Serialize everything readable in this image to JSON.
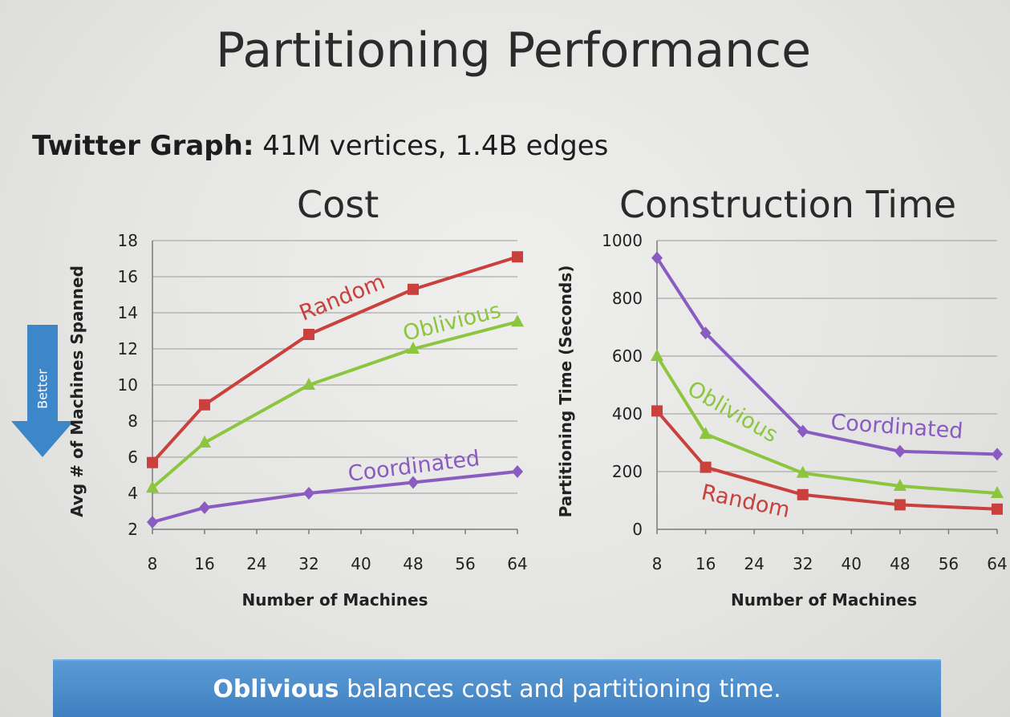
{
  "slide": {
    "title": "Partitioning Performance",
    "subtitle_bold": "Twitter Graph:",
    "subtitle_rest": " 41M vertices, 1.4B edges",
    "better_label": "Better",
    "banner_bold": "Oblivious",
    "banner_rest": " balances cost and partitioning time."
  },
  "colors": {
    "random": "#c9403c",
    "oblivious": "#8cc63f",
    "coordinated": "#8a5cc2",
    "arrow": "#3d86c8",
    "banner": "#4a8acb"
  },
  "chart_data": [
    {
      "type": "line",
      "title": "Cost",
      "xlabel": "Number of Machines",
      "ylabel": "Avg # of Machines Spanned",
      "xlim": [
        8,
        64
      ],
      "ylim": [
        2,
        18
      ],
      "xticks": [
        8,
        16,
        24,
        32,
        40,
        48,
        56,
        64
      ],
      "yticks": [
        2,
        4,
        6,
        8,
        10,
        12,
        14,
        16,
        18
      ],
      "grid": true,
      "legend": "inline labels",
      "x": [
        8,
        16,
        32,
        48,
        64
      ],
      "series": [
        {
          "name": "Random",
          "key": "random",
          "marker": "square",
          "values": [
            5.7,
            8.9,
            12.8,
            15.3,
            17.1
          ]
        },
        {
          "name": "Oblivious",
          "key": "oblivious",
          "marker": "triangle",
          "values": [
            4.3,
            6.8,
            10.0,
            12.0,
            13.5
          ]
        },
        {
          "name": "Coordinated",
          "key": "coordinated",
          "marker": "diamond",
          "values": [
            2.4,
            3.2,
            4.0,
            4.6,
            5.2
          ]
        }
      ]
    },
    {
      "type": "line",
      "title": "Construction Time",
      "xlabel": "Number of Machines",
      "ylabel": "Partitioning Time (Seconds)",
      "xlim": [
        8,
        64
      ],
      "ylim": [
        0,
        1000
      ],
      "xticks": [
        8,
        16,
        24,
        32,
        40,
        48,
        56,
        64
      ],
      "yticks": [
        0,
        200,
        400,
        600,
        800,
        1000
      ],
      "grid": true,
      "legend": "inline labels",
      "x": [
        8,
        16,
        32,
        48,
        64
      ],
      "series": [
        {
          "name": "Coordinated",
          "key": "coordinated",
          "marker": "diamond",
          "values": [
            940,
            680,
            340,
            270,
            260
          ]
        },
        {
          "name": "Oblivious",
          "key": "oblivious",
          "marker": "triangle",
          "values": [
            600,
            330,
            195,
            150,
            125
          ]
        },
        {
          "name": "Random",
          "key": "random",
          "marker": "square",
          "values": [
            410,
            215,
            120,
            85,
            70
          ]
        }
      ]
    }
  ]
}
